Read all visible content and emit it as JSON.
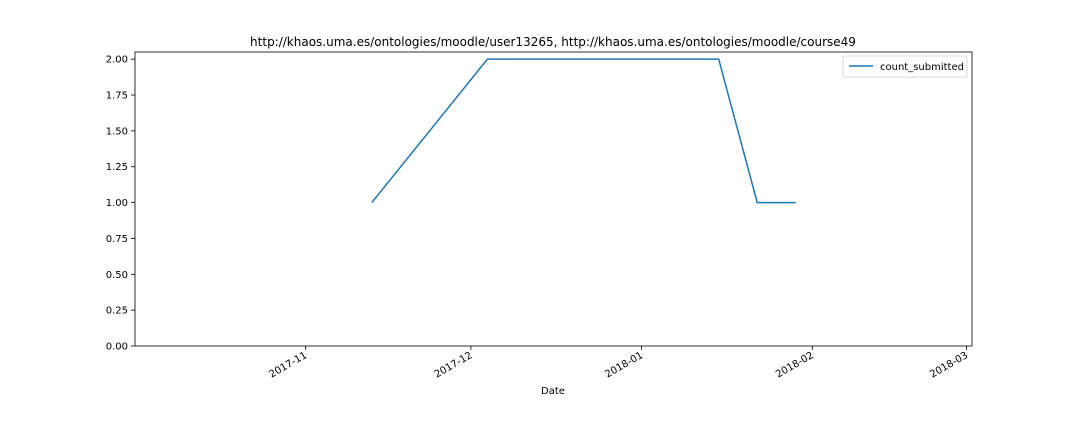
{
  "chart_data": {
    "type": "line",
    "title": "http://khaos.uma.es/ontologies/moodle/user13265, http://khaos.uma.es/ontologies/moodle/course49",
    "xlabel": "Date",
    "ylabel": "",
    "x_type": "date",
    "xlim": [
      "2017-10-01",
      "2018-03-02"
    ],
    "ylim": [
      0,
      2.05
    ],
    "x_ticks": [
      "2017-11-01",
      "2017-12-01",
      "2018-01-01",
      "2018-02-01",
      "2018-03-01"
    ],
    "x_tick_labels": [
      "2017-11",
      "2017-12",
      "2018-01",
      "2018-02",
      "2018-03"
    ],
    "y_ticks": [
      0,
      0.25,
      0.5,
      0.75,
      1.0,
      1.25,
      1.5,
      1.75,
      2.0
    ],
    "y_tick_labels": [
      "0.00",
      "0.25",
      "0.50",
      "0.75",
      "1.00",
      "1.25",
      "1.50",
      "1.75",
      "2.00"
    ],
    "grid": false,
    "legend_position": "top-right",
    "series": [
      {
        "name": "count_submitted",
        "color": "#1f77b4",
        "x": [
          "2017-11-13",
          "2017-12-04",
          "2018-01-15",
          "2018-01-22",
          "2018-01-29"
        ],
        "y": [
          1,
          2,
          2,
          1,
          1
        ]
      }
    ]
  }
}
